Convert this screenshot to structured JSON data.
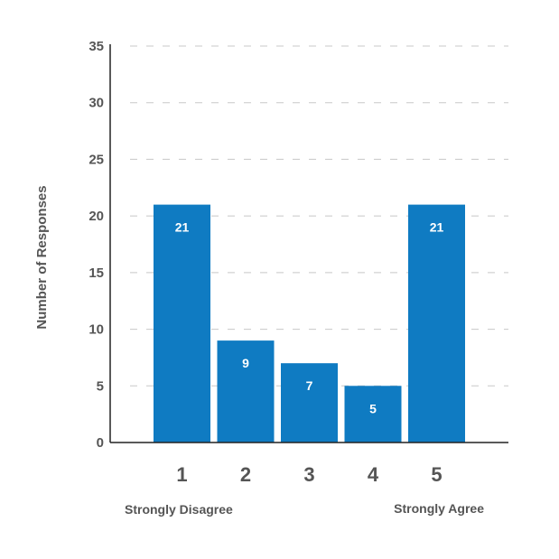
{
  "chart_data": {
    "type": "bar",
    "title": "",
    "xlabel": "",
    "ylabel": "Number of Responses",
    "categories": [
      "1",
      "2",
      "3",
      "4",
      "5"
    ],
    "values": [
      21,
      9,
      7,
      5,
      21
    ],
    "ylim": [
      0,
      35
    ],
    "yticks": [
      0,
      5,
      10,
      15,
      20,
      25,
      30,
      35
    ],
    "grid": true,
    "bar_color": "#0f7bc2",
    "scale_anchors": {
      "low": "Strongly Disagree",
      "high": "Strongly Agree"
    }
  }
}
